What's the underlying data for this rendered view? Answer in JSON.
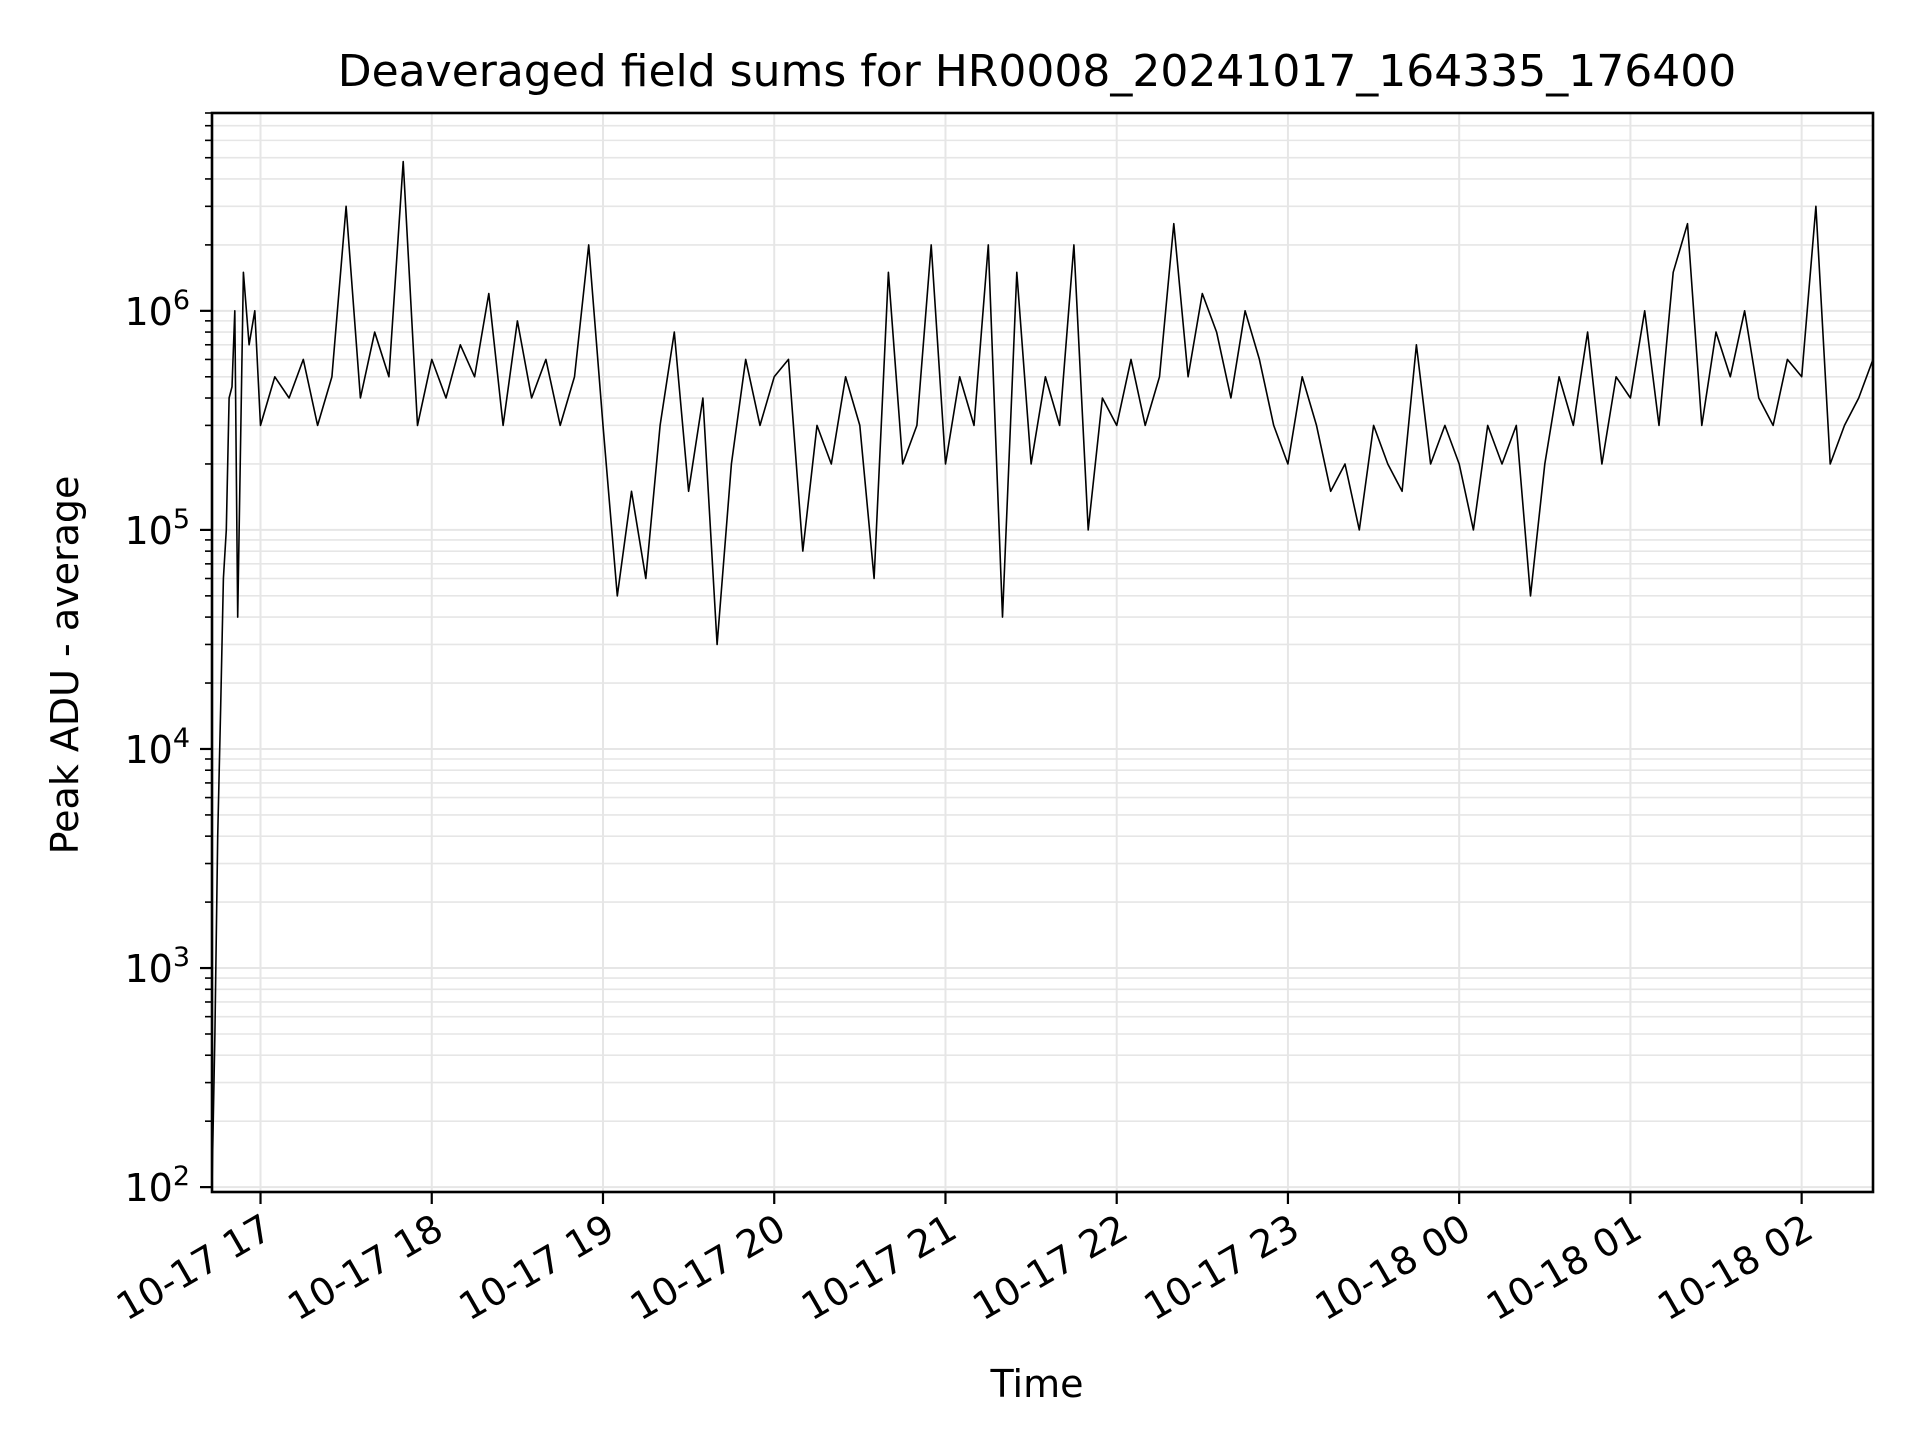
{
  "chart_data": {
    "type": "line",
    "title": "Deaveraged field sums for HR0008_20241017_164335_176400",
    "xlabel": "Time",
    "ylabel": "Peak ADU - average",
    "yscale": "log",
    "ylim": [
      95,
      8000000
    ],
    "xlim": [
      "2024-10-17 16:43",
      "2024-10-18 02:25"
    ],
    "grid": true,
    "line_color": "#000000",
    "grid_color": "#e6e6e6",
    "x_ticks": [
      {
        "time": "2024-10-17 17:00",
        "label": "10-17 17"
      },
      {
        "time": "2024-10-17 18:00",
        "label": "10-17 18"
      },
      {
        "time": "2024-10-17 19:00",
        "label": "10-17 19"
      },
      {
        "time": "2024-10-17 20:00",
        "label": "10-17 20"
      },
      {
        "time": "2024-10-17 21:00",
        "label": "10-17 21"
      },
      {
        "time": "2024-10-17 22:00",
        "label": "10-17 22"
      },
      {
        "time": "2024-10-17 23:00",
        "label": "10-17 23"
      },
      {
        "time": "2024-10-18 00:00",
        "label": "10-18 00"
      },
      {
        "time": "2024-10-18 01:00",
        "label": "10-18 01"
      },
      {
        "time": "2024-10-18 02:00",
        "label": "10-18 02"
      }
    ],
    "y_ticks": [
      {
        "value": 100,
        "base": "10",
        "exp": "2"
      },
      {
        "value": 1000,
        "base": "10",
        "exp": "3"
      },
      {
        "value": 10000,
        "base": "10",
        "exp": "4"
      },
      {
        "value": 100000,
        "base": "10",
        "exp": "5"
      },
      {
        "value": 1000000,
        "base": "10",
        "exp": "6"
      }
    ],
    "series": [
      {
        "x": [
          "2024-10-17 16:43",
          "2024-10-17 16:44",
          "2024-10-17 16:45",
          "2024-10-17 16:46",
          "2024-10-17 16:47",
          "2024-10-17 16:48",
          "2024-10-17 16:49",
          "2024-10-17 16:50",
          "2024-10-17 16:51",
          "2024-10-17 16:52",
          "2024-10-17 16:54",
          "2024-10-17 16:56",
          "2024-10-17 16:58",
          "2024-10-17 17:00",
          "2024-10-17 17:05",
          "2024-10-17 17:10",
          "2024-10-17 17:15",
          "2024-10-17 17:20",
          "2024-10-17 17:25",
          "2024-10-17 17:30",
          "2024-10-17 17:35",
          "2024-10-17 17:40",
          "2024-10-17 17:45",
          "2024-10-17 17:50",
          "2024-10-17 17:55",
          "2024-10-17 18:00",
          "2024-10-17 18:05",
          "2024-10-17 18:10",
          "2024-10-17 18:15",
          "2024-10-17 18:20",
          "2024-10-17 18:25",
          "2024-10-17 18:30",
          "2024-10-17 18:35",
          "2024-10-17 18:40",
          "2024-10-17 18:45",
          "2024-10-17 18:50",
          "2024-10-17 18:55",
          "2024-10-17 19:00",
          "2024-10-17 19:05",
          "2024-10-17 19:10",
          "2024-10-17 19:15",
          "2024-10-17 19:20",
          "2024-10-17 19:25",
          "2024-10-17 19:30",
          "2024-10-17 19:35",
          "2024-10-17 19:40",
          "2024-10-17 19:45",
          "2024-10-17 19:50",
          "2024-10-17 19:55",
          "2024-10-17 20:00",
          "2024-10-17 20:05",
          "2024-10-17 20:10",
          "2024-10-17 20:15",
          "2024-10-17 20:20",
          "2024-10-17 20:25",
          "2024-10-17 20:30",
          "2024-10-17 20:35",
          "2024-10-17 20:40",
          "2024-10-17 20:45",
          "2024-10-17 20:50",
          "2024-10-17 20:55",
          "2024-10-17 21:00",
          "2024-10-17 21:05",
          "2024-10-17 21:10",
          "2024-10-17 21:15",
          "2024-10-17 21:20",
          "2024-10-17 21:25",
          "2024-10-17 21:30",
          "2024-10-17 21:35",
          "2024-10-17 21:40",
          "2024-10-17 21:45",
          "2024-10-17 21:50",
          "2024-10-17 21:55",
          "2024-10-17 22:00",
          "2024-10-17 22:05",
          "2024-10-17 22:10",
          "2024-10-17 22:15",
          "2024-10-17 22:20",
          "2024-10-17 22:25",
          "2024-10-17 22:30",
          "2024-10-17 22:35",
          "2024-10-17 22:40",
          "2024-10-17 22:45",
          "2024-10-17 22:50",
          "2024-10-17 22:55",
          "2024-10-17 23:00",
          "2024-10-17 23:05",
          "2024-10-17 23:10",
          "2024-10-17 23:15",
          "2024-10-17 23:20",
          "2024-10-17 23:25",
          "2024-10-17 23:30",
          "2024-10-17 23:35",
          "2024-10-17 23:40",
          "2024-10-17 23:45",
          "2024-10-17 23:50",
          "2024-10-17 23:55",
          "2024-10-18 00:00",
          "2024-10-18 00:05",
          "2024-10-18 00:10",
          "2024-10-18 00:15",
          "2024-10-18 00:20",
          "2024-10-18 00:25",
          "2024-10-18 00:30",
          "2024-10-18 00:35",
          "2024-10-18 00:40",
          "2024-10-18 00:45",
          "2024-10-18 00:50",
          "2024-10-18 00:55",
          "2024-10-18 01:00",
          "2024-10-18 01:05",
          "2024-10-18 01:10",
          "2024-10-18 01:15",
          "2024-10-18 01:20",
          "2024-10-18 01:25",
          "2024-10-18 01:30",
          "2024-10-18 01:35",
          "2024-10-18 01:40",
          "2024-10-18 01:45",
          "2024-10-18 01:50",
          "2024-10-18 01:55",
          "2024-10-18 02:00",
          "2024-10-18 02:05",
          "2024-10-18 02:10",
          "2024-10-18 02:15",
          "2024-10-18 02:20",
          "2024-10-18 02:25"
        ],
        "y": [
          100,
          500,
          4000,
          15000,
          60000,
          100000,
          400000,
          450000,
          1000000,
          40000,
          1500000,
          700000,
          1000000,
          300000,
          500000,
          400000,
          600000,
          300000,
          500000,
          3000000,
          400000,
          800000,
          500000,
          4800000,
          300000,
          600000,
          400000,
          700000,
          500000,
          1200000,
          300000,
          900000,
          400000,
          600000,
          300000,
          500000,
          2000000,
          300000,
          50000,
          150000,
          60000,
          300000,
          800000,
          150000,
          400000,
          30000,
          200000,
          600000,
          300000,
          500000,
          600000,
          80000,
          300000,
          200000,
          500000,
          300000,
          60000,
          1500000,
          200000,
          300000,
          2000000,
          200000,
          500000,
          300000,
          2000000,
          40000,
          1500000,
          200000,
          500000,
          300000,
          2000000,
          100000,
          400000,
          300000,
          600000,
          300000,
          500000,
          2500000,
          500000,
          1200000,
          800000,
          400000,
          1000000,
          600000,
          300000,
          200000,
          500000,
          300000,
          150000,
          200000,
          100000,
          300000,
          200000,
          150000,
          700000,
          200000,
          300000,
          200000,
          100000,
          300000,
          200000,
          300000,
          50000,
          200000,
          500000,
          300000,
          800000,
          200000,
          500000,
          400000,
          1000000,
          300000,
          1500000,
          2500000,
          300000,
          800000,
          500000,
          1000000,
          400000,
          300000,
          600000,
          500000,
          3000000,
          200000,
          300000,
          400000,
          600000
        ]
      }
    ]
  }
}
